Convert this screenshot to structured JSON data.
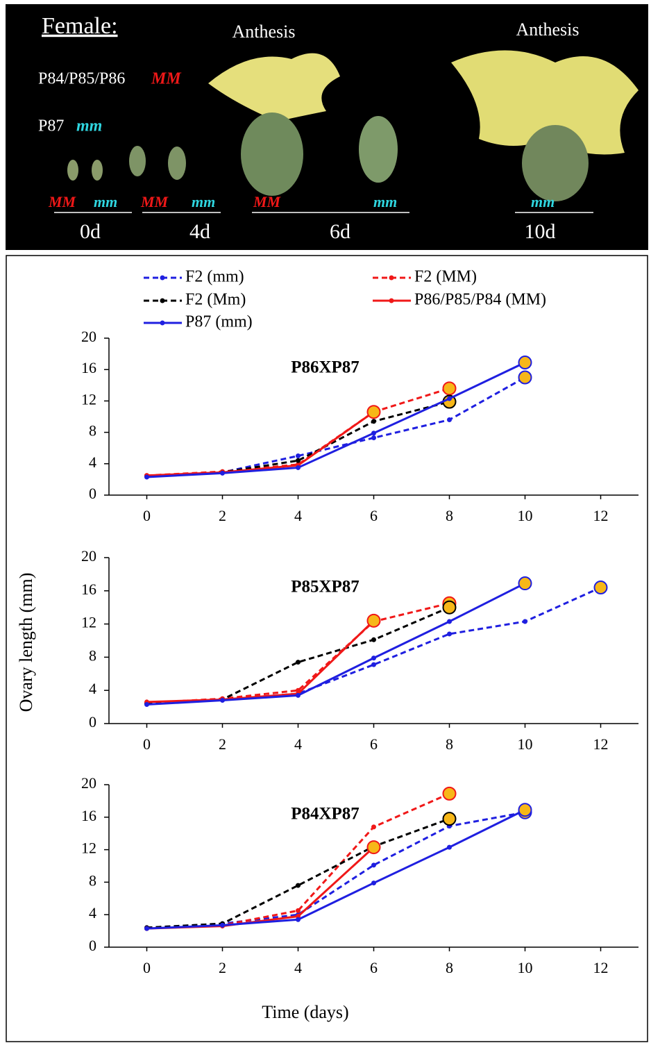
{
  "photo_panel": {
    "title": "Female:",
    "anthesis_labels": [
      "Anthesis",
      "Anthesis"
    ],
    "genotype_key": [
      {
        "lines": "P84/P85/P86",
        "genotype": "MM"
      },
      {
        "lines": "P87",
        "genotype": "mm"
      }
    ],
    "sample_labels": [
      "MM",
      "mm",
      "MM",
      "mm",
      "MM",
      "mm",
      "mm"
    ],
    "day_labels": [
      "0d",
      "4d",
      "6d",
      "10d"
    ]
  },
  "chart_data": [
    {
      "type": "line",
      "title": "P86XP87",
      "x": [
        0,
        2,
        4,
        6,
        8,
        10,
        12
      ],
      "xlim": [
        -1,
        13
      ],
      "xticks": [
        0,
        2,
        4,
        6,
        8,
        10,
        12
      ],
      "ylim": [
        0,
        20
      ],
      "yticks": [
        0,
        4,
        8,
        12,
        16,
        20
      ],
      "end_marker_color": "#f7b718",
      "series": [
        {
          "name": "F2 (mm)",
          "color": "#1f1fe0",
          "dashed": true,
          "values": [
            2.4,
            2.9,
            5.0,
            7.3,
            9.6,
            15.0,
            null
          ]
        },
        {
          "name": "F2 (MM)",
          "color": "#f01818",
          "dashed": true,
          "values": [
            2.5,
            3.0,
            3.9,
            10.6,
            13.6,
            null,
            null
          ]
        },
        {
          "name": "F2 (Mm)",
          "color": "#000000",
          "dashed": true,
          "values": [
            2.4,
            2.9,
            4.4,
            9.4,
            11.9,
            null,
            null
          ]
        },
        {
          "name": "P86/P85/P84 (MM)",
          "color": "#f01818",
          "dashed": false,
          "values": [
            2.5,
            2.9,
            3.8,
            10.6,
            null,
            null,
            null
          ]
        },
        {
          "name": "P87 (mm)",
          "color": "#1f1fe0",
          "dashed": false,
          "values": [
            2.3,
            2.8,
            3.5,
            7.9,
            12.3,
            16.9,
            null
          ]
        }
      ]
    },
    {
      "type": "line",
      "title": "P85XP87",
      "y_label": "Ovary length (mm)",
      "x": [
        0,
        2,
        4,
        6,
        8,
        10,
        12
      ],
      "xlim": [
        -1,
        13
      ],
      "xticks": [
        0,
        2,
        4,
        6,
        8,
        10,
        12
      ],
      "ylim": [
        0,
        20
      ],
      "yticks": [
        0,
        4,
        8,
        12,
        16,
        20
      ],
      "end_marker_color": "#f7b718",
      "series": [
        {
          "color": "#1f1fe0",
          "dashed": true,
          "values": [
            2.4,
            2.9,
            3.6,
            7.1,
            10.8,
            12.3,
            16.4
          ]
        },
        {
          "color": "#f01818",
          "dashed": true,
          "values": [
            2.5,
            3.0,
            4.0,
            12.3,
            14.5,
            null,
            null
          ]
        },
        {
          "color": "#000000",
          "dashed": true,
          "values": [
            2.4,
            2.9,
            7.4,
            10.1,
            14.0,
            null,
            null
          ]
        },
        {
          "color": "#f01818",
          "dashed": false,
          "values": [
            2.6,
            2.9,
            3.6,
            12.4,
            null,
            null,
            null
          ]
        },
        {
          "color": "#1f1fe0",
          "dashed": false,
          "values": [
            2.3,
            2.8,
            3.4,
            7.9,
            12.3,
            16.9,
            null
          ]
        }
      ]
    },
    {
      "type": "line",
      "title": "P84XP87",
      "x_label": "Time (days)",
      "x": [
        0,
        2,
        4,
        6,
        8,
        10,
        12
      ],
      "xlim": [
        -1,
        13
      ],
      "xticks": [
        0,
        2,
        4,
        6,
        8,
        10,
        12
      ],
      "ylim": [
        0,
        20
      ],
      "yticks": [
        0,
        4,
        8,
        12,
        16,
        20
      ],
      "end_marker_color": "#f7b718",
      "series": [
        {
          "color": "#1f1fe0",
          "dashed": true,
          "values": [
            2.4,
            2.9,
            4.0,
            10.1,
            14.9,
            16.6,
            null
          ]
        },
        {
          "color": "#f01818",
          "dashed": true,
          "values": [
            2.3,
            2.7,
            4.5,
            14.8,
            18.9,
            null,
            null
          ]
        },
        {
          "color": "#000000",
          "dashed": true,
          "values": [
            2.4,
            2.9,
            7.6,
            12.4,
            15.8,
            null,
            null
          ]
        },
        {
          "color": "#f01818",
          "dashed": false,
          "values": [
            2.3,
            2.6,
            3.8,
            12.3,
            null,
            null,
            null
          ]
        },
        {
          "color": "#1f1fe0",
          "dashed": false,
          "values": [
            2.3,
            2.7,
            3.4,
            7.9,
            12.3,
            16.9,
            null
          ]
        }
      ]
    }
  ]
}
